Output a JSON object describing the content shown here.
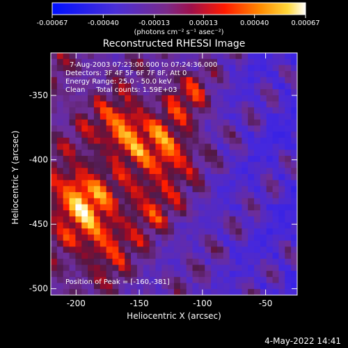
{
  "chart_data": {
    "type": "heatmap",
    "title": "Reconstructed RHESSI Image",
    "xlabel": "Heliocentric X (arcsec)",
    "ylabel": "Heliocentric Y (arcsec)",
    "xlim": [
      -220,
      -25
    ],
    "ylim": [
      -505,
      -317
    ],
    "x_ticks": [
      -200,
      -150,
      -100,
      -50
    ],
    "x_tick_labels": [
      "-200",
      "-150",
      "-100",
      "-50"
    ],
    "y_ticks": [
      -350,
      -400,
      -450,
      -500
    ],
    "y_tick_labels": [
      "-350",
      "-400",
      "-450",
      "-500"
    ],
    "colorbar": {
      "range": [
        -0.00067,
        0.00067
      ],
      "ticks": [
        -0.00067,
        -0.0004,
        -0.00013,
        0.00013,
        0.0004,
        0.00067
      ],
      "tick_labels": [
        "-0.00067",
        "-0.00040",
        "-0.00013",
        "0.00013",
        "0.00040",
        "0.00067"
      ],
      "units_label": "(photons cm⁻² s⁻¹ asec⁻²)"
    },
    "annotations": [
      "7-Aug-2003 07:23:00.000 to 07:24:36.000",
      "Detectors: 3F 4F 5F 6F 7F 8F, Att 0",
      "Energy Range: 25.0 - 50.0 keV",
      "Clean     Total counts: 1.59E+03"
    ],
    "peak_label": "Position of Peak = [-160,-381]",
    "peak": [
      -160,
      -381
    ],
    "colors": {
      "colormap": [
        "#1010ff",
        "#5a2fbf",
        "#7a2a7a",
        "#b0103a",
        "#ff2000",
        "#ff8a00",
        "#ffd83a",
        "#ffffff"
      ]
    }
  },
  "footer": {
    "date": "4-May-2022 14:41"
  }
}
